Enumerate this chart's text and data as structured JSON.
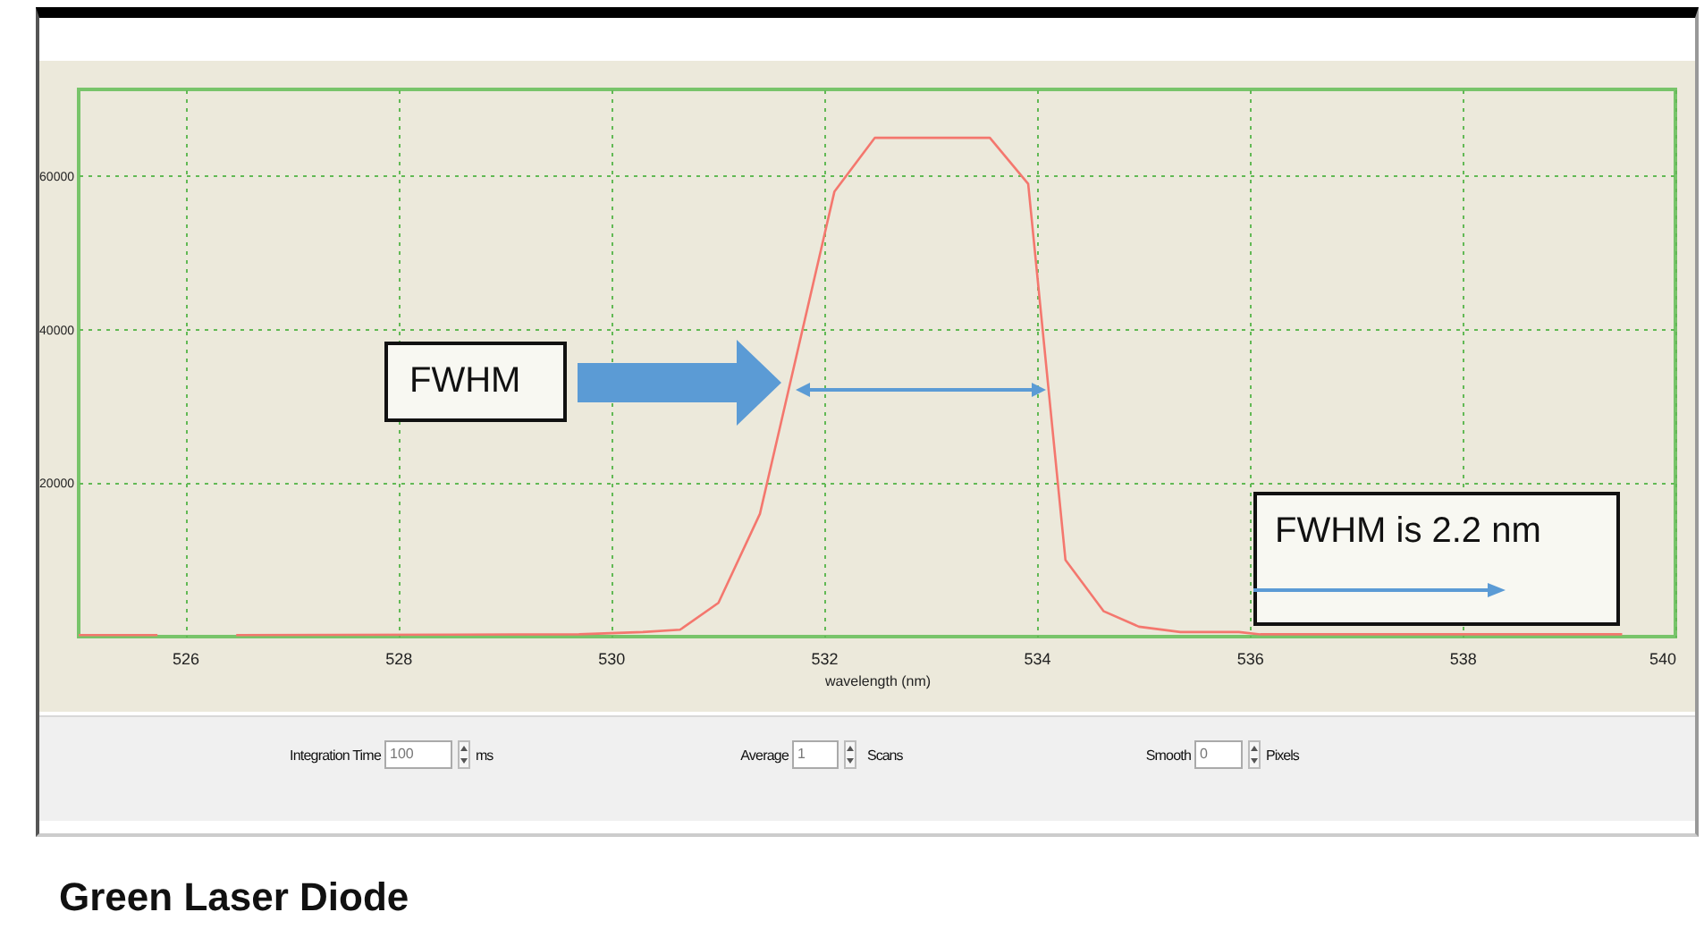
{
  "chart_data": {
    "type": "line",
    "title": "Green Laser Diode",
    "xlabel": "wavelength (nm)",
    "x": [
      525.0,
      525.74,
      526.1,
      526.48,
      529.7,
      530.3,
      530.65,
      531.01,
      531.4,
      532.1,
      532.48,
      533.56,
      533.92,
      534.27,
      534.63,
      534.96,
      535.35,
      535.9,
      536.1,
      539.5
    ],
    "series": [
      {
        "color": "#f4776e",
        "values": [
          200,
          200,
          null,
          200,
          300,
          600,
          900,
          4400,
          16000,
          58000,
          65000,
          65000,
          59000,
          10000,
          3300,
          1300,
          600,
          600,
          300,
          300
        ]
      }
    ],
    "xlim": [
      525,
      540
    ],
    "xticks": [
      526,
      528,
      530,
      532,
      534,
      536,
      538,
      540
    ],
    "ylim": [
      0,
      71300
    ],
    "yticks": [
      20000,
      40000,
      60000
    ],
    "grid": true,
    "annotations": [
      "FWHM",
      "FWHM is 2.2 nm",
      "Integration Time",
      "100",
      "ms",
      "Average",
      "1",
      "Scans",
      "Smooth",
      "0",
      "Pixels"
    ]
  }
}
